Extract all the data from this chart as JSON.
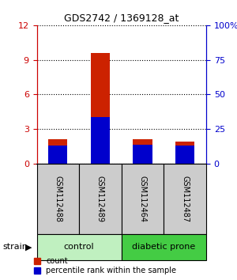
{
  "title": "GDS2742 / 1369128_at",
  "samples": [
    "GSM112488",
    "GSM112489",
    "GSM112464",
    "GSM112487"
  ],
  "red_values": [
    2.1,
    9.6,
    2.1,
    1.9
  ],
  "blue_values": [
    13.0,
    34.0,
    14.0,
    13.0
  ],
  "ylim_left": [
    0,
    12
  ],
  "ylim_right": [
    0,
    100
  ],
  "yticks_left": [
    0,
    3,
    6,
    9,
    12
  ],
  "yticks_right": [
    0,
    25,
    50,
    75,
    100
  ],
  "left_tick_color": "#cc0000",
  "right_tick_color": "#0000cc",
  "bar_width": 0.45,
  "red_color": "#cc2200",
  "blue_color": "#0000cc",
  "legend_red": "count",
  "legend_blue": "percentile rank within the sample",
  "strain_label": "strain",
  "group_box_color_1": "#c0f0c0",
  "group_box_color_2": "#44cc44",
  "sample_box_color": "#cccccc",
  "title_fontsize": 9,
  "tick_fontsize": 8,
  "sample_fontsize": 7,
  "group_fontsize": 8,
  "legend_fontsize": 7
}
